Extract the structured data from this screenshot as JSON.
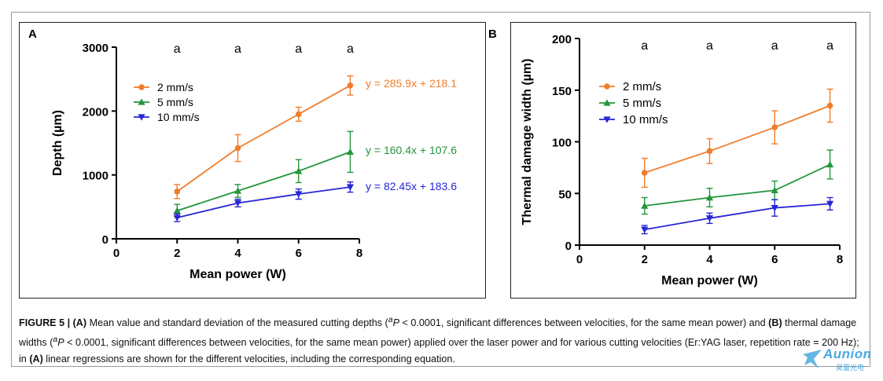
{
  "panels": {
    "A": {
      "letter": "A"
    },
    "B": {
      "letter": "B"
    }
  },
  "chart_data": [
    {
      "type": "line",
      "panel": "A",
      "xlabel": "Mean power (W)",
      "ylabel": "Depth (µm)",
      "xlim": [
        0,
        8
      ],
      "ylim": [
        0,
        3000
      ],
      "x_ticks": [
        "0",
        "2",
        "4",
        "6",
        "8"
      ],
      "y_ticks": [
        "0",
        "1000",
        "2000",
        "3000"
      ],
      "grid": false,
      "legend_position": "upper-left",
      "significance_labels": [
        "a",
        "a",
        "a",
        "a"
      ],
      "x": [
        2,
        4,
        6,
        7.7
      ],
      "series": [
        {
          "name": "2 mm/s",
          "color": "#f07d2d",
          "marker": "circle",
          "values": [
            740,
            1420,
            1950,
            2400
          ],
          "errors": [
            110,
            210,
            110,
            150
          ],
          "equation": "y = 285.9x + 218.1"
        },
        {
          "name": "5 mm/s",
          "color": "#23963c",
          "marker": "triangle-up",
          "values": [
            440,
            750,
            1060,
            1360
          ],
          "errors": [
            100,
            100,
            180,
            320
          ],
          "equation": "y = 160.4x + 107.6"
        },
        {
          "name": "10 mm/s",
          "color": "#2626d4",
          "marker": "triangle-down",
          "values": [
            330,
            560,
            700,
            810
          ],
          "errors": [
            60,
            60,
            80,
            80
          ],
          "equation": "y = 82.45x + 183.6"
        }
      ]
    },
    {
      "type": "line",
      "panel": "B",
      "xlabel": "Mean power (W)",
      "ylabel": "Thermal damage width (µm)",
      "xlim": [
        0,
        8
      ],
      "ylim": [
        0,
        200
      ],
      "x_ticks": [
        "0",
        "2",
        "4",
        "6",
        "8"
      ],
      "y_ticks": [
        "0",
        "50",
        "100",
        "150",
        "200"
      ],
      "grid": false,
      "legend_position": "upper-left",
      "significance_labels": [
        "a",
        "a",
        "a",
        "a"
      ],
      "x": [
        2,
        4,
        6,
        7.7
      ],
      "series": [
        {
          "name": "2 mm/s",
          "color": "#f07d2d",
          "marker": "circle",
          "values": [
            70,
            91,
            114,
            135
          ],
          "errors": [
            14,
            12,
            16,
            16
          ]
        },
        {
          "name": "5 mm/s",
          "color": "#23963c",
          "marker": "triangle-up",
          "values": [
            38,
            46,
            53,
            78
          ],
          "errors": [
            8,
            9,
            9,
            14
          ]
        },
        {
          "name": "10 mm/s",
          "color": "#2626d4",
          "marker": "triangle-down",
          "values": [
            15,
            26,
            36,
            40
          ],
          "errors": [
            4,
            5,
            8,
            6
          ]
        }
      ]
    }
  ],
  "caption": {
    "fig": "FIGURE 5 |",
    "pA": "(A)",
    "t1": " Mean value and standard deviation of the measured cutting depths (",
    "sup": "a",
    "pvar": "P",
    "t2": " < 0.0001, significant differences between velocities, for the same mean power) and ",
    "pB": "(B)",
    "t3": " thermal damage widths (",
    "t4": " < 0.0001, significant differences between velocities, for the same mean power) applied over the laser power and for various cutting velocities (Er:YAG laser, repetition rate = 200 Hz); in ",
    "pA2": "(A)",
    "t5": " linear regressions are shown for the different velocities, including the corresponding equation."
  },
  "watermark": {
    "brand": "Aunion",
    "sub": "昊量光电"
  }
}
